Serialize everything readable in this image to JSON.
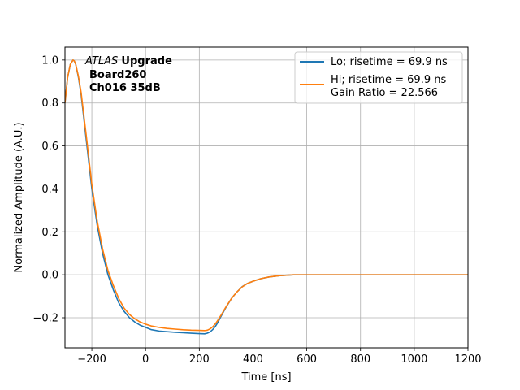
{
  "chart_data": {
    "type": "line",
    "xlabel": "Time [ns]",
    "ylabel": "Normalized Amplitude (A.U.)",
    "xlim": [
      -300,
      1200
    ],
    "ylim": [
      -0.34,
      1.06
    ],
    "xticks": [
      -200,
      0,
      200,
      400,
      600,
      800,
      1000,
      1200
    ],
    "xtick_labels": [
      "−200",
      "0",
      "200",
      "400",
      "600",
      "800",
      "1000",
      "1200"
    ],
    "yticks": [
      -0.2,
      0.0,
      0.2,
      0.4,
      0.6,
      0.8,
      1.0
    ],
    "ytick_labels": [
      "−0.2",
      "0.0",
      "0.2",
      "0.4",
      "0.6",
      "0.8",
      "1.0"
    ],
    "grid": true,
    "legend_position": "top-right",
    "annotation": {
      "italic": "ATLAS",
      "bold": "Upgrade",
      "line2": "Board260",
      "line3": "Ch016 35dB"
    },
    "series": [
      {
        "name": "Lo; risetime = 69.9 ns",
        "color": "#1f77b4",
        "x": [
          -300,
          -290,
          -280,
          -270,
          -265,
          -260,
          -250,
          -240,
          -220,
          -200,
          -180,
          -160,
          -140,
          -120,
          -100,
          -80,
          -60,
          -40,
          -20,
          0,
          20,
          50,
          80,
          110,
          140,
          170,
          200,
          220,
          230,
          240,
          250,
          260,
          270,
          280,
          300,
          320,
          340,
          360,
          380,
          400,
          430,
          460,
          500,
          550,
          600,
          700,
          800,
          900,
          1000,
          1100,
          1200
        ],
        "y": [
          0.8,
          0.92,
          0.98,
          1.0,
          0.995,
          0.98,
          0.92,
          0.84,
          0.62,
          0.4,
          0.23,
          0.1,
          0.0,
          -0.07,
          -0.13,
          -0.17,
          -0.2,
          -0.22,
          -0.235,
          -0.245,
          -0.255,
          -0.262,
          -0.265,
          -0.268,
          -0.27,
          -0.272,
          -0.274,
          -0.275,
          -0.272,
          -0.266,
          -0.255,
          -0.24,
          -0.22,
          -0.195,
          -0.15,
          -0.11,
          -0.08,
          -0.055,
          -0.04,
          -0.03,
          -0.018,
          -0.01,
          -0.004,
          0.0,
          0.0,
          0.0,
          0.0,
          0.0,
          0.0,
          0.0,
          0.0
        ]
      },
      {
        "name": "Hi; risetime = 69.9 ns\n Gain Ratio = 22.566",
        "color": "#ff7f0e",
        "x": [
          -300,
          -290,
          -280,
          -270,
          -265,
          -260,
          -250,
          -240,
          -220,
          -200,
          -180,
          -160,
          -140,
          -120,
          -100,
          -80,
          -60,
          -40,
          -20,
          0,
          20,
          50,
          80,
          110,
          140,
          170,
          200,
          220,
          230,
          240,
          250,
          260,
          270,
          280,
          300,
          320,
          340,
          360,
          380,
          400,
          430,
          460,
          500,
          550,
          600,
          700,
          800,
          900,
          1000,
          1100,
          1200
        ],
        "y": [
          0.8,
          0.92,
          0.98,
          1.0,
          0.995,
          0.98,
          0.925,
          0.85,
          0.64,
          0.42,
          0.25,
          0.12,
          0.02,
          -0.05,
          -0.11,
          -0.155,
          -0.185,
          -0.205,
          -0.22,
          -0.23,
          -0.238,
          -0.245,
          -0.25,
          -0.253,
          -0.256,
          -0.258,
          -0.259,
          -0.26,
          -0.258,
          -0.252,
          -0.242,
          -0.228,
          -0.21,
          -0.19,
          -0.148,
          -0.11,
          -0.08,
          -0.056,
          -0.04,
          -0.03,
          -0.018,
          -0.01,
          -0.004,
          0.0,
          0.0,
          0.0,
          0.0,
          0.0,
          0.0,
          0.0,
          0.0
        ]
      }
    ]
  }
}
